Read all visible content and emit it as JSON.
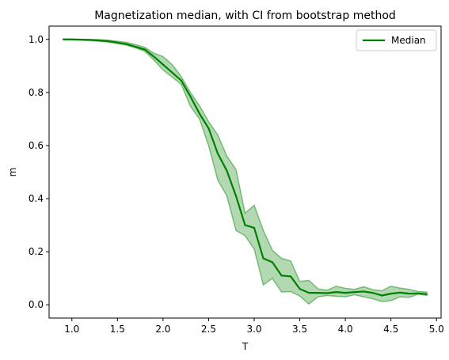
{
  "chart_data": {
    "type": "line",
    "title": "Magnetization median, with CI from bootstrap method",
    "xlabel": "T",
    "ylabel": "m",
    "xlim": [
      0.75,
      5.05
    ],
    "ylim": [
      -0.05,
      1.05
    ],
    "xticks": [
      1.0,
      1.5,
      2.0,
      2.5,
      3.0,
      3.5,
      4.0,
      4.5,
      5.0
    ],
    "xtick_labels": [
      "1.0",
      "1.5",
      "2.0",
      "2.5",
      "3.0",
      "3.5",
      "4.0",
      "4.5",
      "5.0"
    ],
    "yticks": [
      0.0,
      0.2,
      0.4,
      0.6,
      0.8,
      1.0
    ],
    "ytick_labels": [
      "0.0",
      "0.2",
      "0.4",
      "0.6",
      "0.8",
      "1.0"
    ],
    "grid": false,
    "legend": {
      "location": "top-right",
      "entries": [
        "Median"
      ]
    },
    "x": [
      0.9,
      1.0,
      1.1,
      1.2,
      1.3,
      1.4,
      1.5,
      1.6,
      1.7,
      1.8,
      1.9,
      2.0,
      2.1,
      2.2,
      2.3,
      2.4,
      2.5,
      2.6,
      2.7,
      2.8,
      2.9,
      3.0,
      3.1,
      3.2,
      3.3,
      3.4,
      3.5,
      3.6,
      3.7,
      3.8,
      3.9,
      4.0,
      4.1,
      4.2,
      4.3,
      4.4,
      4.5,
      4.6,
      4.7,
      4.8,
      4.9
    ],
    "series": [
      {
        "name": "Median",
        "color": "#008000",
        "values": [
          1.0,
          1.0,
          0.999,
          0.998,
          0.996,
          0.993,
          0.988,
          0.982,
          0.972,
          0.962,
          0.935,
          0.905,
          0.875,
          0.845,
          0.785,
          0.72,
          0.665,
          0.57,
          0.505,
          0.41,
          0.3,
          0.29,
          0.175,
          0.16,
          0.11,
          0.107,
          0.06,
          0.045,
          0.045,
          0.044,
          0.048,
          0.045,
          0.048,
          0.05,
          0.045,
          0.035,
          0.042,
          0.046,
          0.042,
          0.043,
          0.04
        ],
        "ci_lower": [
          0.999,
          0.998,
          0.997,
          0.995,
          0.993,
          0.99,
          0.984,
          0.978,
          0.968,
          0.955,
          0.922,
          0.885,
          0.858,
          0.83,
          0.748,
          0.7,
          0.6,
          0.47,
          0.41,
          0.28,
          0.26,
          0.21,
          0.075,
          0.1,
          0.048,
          0.05,
          0.033,
          0.003,
          0.03,
          0.035,
          0.032,
          0.03,
          0.038,
          0.03,
          0.023,
          0.012,
          0.016,
          0.03,
          0.028,
          0.04,
          0.035
        ],
        "ci_upper": [
          1.0,
          1.0,
          1.0,
          1.0,
          0.999,
          0.997,
          0.993,
          0.989,
          0.98,
          0.97,
          0.948,
          0.935,
          0.905,
          0.86,
          0.8,
          0.75,
          0.69,
          0.64,
          0.56,
          0.51,
          0.345,
          0.375,
          0.28,
          0.205,
          0.175,
          0.165,
          0.088,
          0.092,
          0.06,
          0.055,
          0.07,
          0.062,
          0.058,
          0.068,
          0.057,
          0.053,
          0.07,
          0.063,
          0.058,
          0.05,
          0.048
        ]
      }
    ]
  }
}
